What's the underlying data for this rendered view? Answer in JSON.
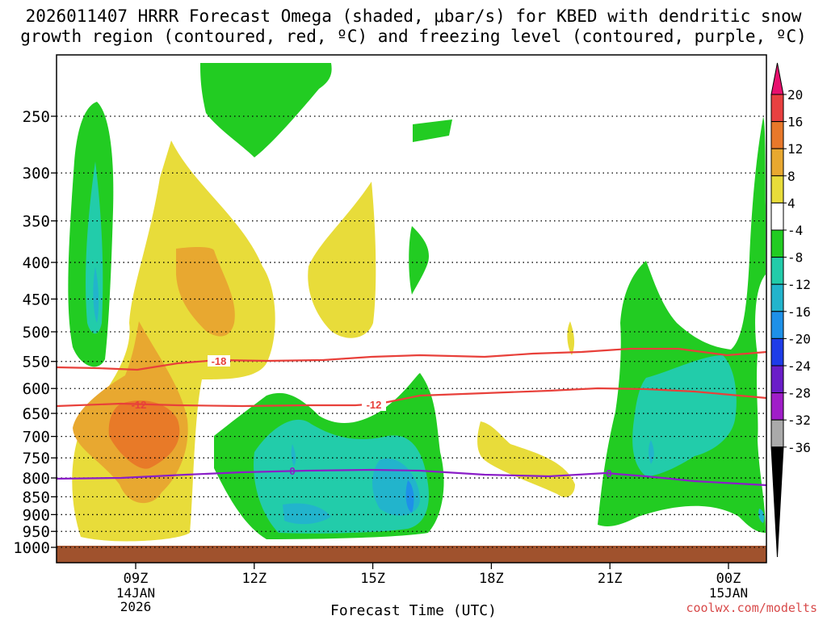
{
  "title_line1": "2026011407 HRRR Forecast Omega (shaded, μbar/s) for KBED with dendritic snow",
  "title_line2": "growth region (contoured, red, ºC) and freezing level (contoured, purple, ºC)",
  "credit": "coolwx.com/modelts",
  "colors": {
    "red_contour": "#e8403a",
    "purple_contour": "#8a1ec8",
    "ground": "#a0522d",
    "green": "#22cc22",
    "teal": "#22ccaa",
    "yellow": "#e8dc3a",
    "orange": "#e8a830",
    "dark_orange": "#e87a28"
  },
  "chart_data": {
    "type": "contour",
    "xlabel": "Forecast Time (UTC)",
    "ylabel": "",
    "x_ticks": [
      {
        "label": "09Z",
        "sub": [
          "14JAN",
          "2026"
        ]
      },
      {
        "label": "12Z",
        "sub": []
      },
      {
        "label": "15Z",
        "sub": []
      },
      {
        "label": "18Z",
        "sub": []
      },
      {
        "label": "21Z",
        "sub": []
      },
      {
        "label": "00Z",
        "sub": [
          "15JAN"
        ]
      }
    ],
    "y_ticks": [
      "250",
      "300",
      "350",
      "400",
      "450",
      "500",
      "550",
      "600",
      "650",
      "700",
      "750",
      "800",
      "850",
      "900",
      "950",
      "1000"
    ],
    "colorbar": {
      "labels": [
        "20",
        "16",
        "12",
        "8",
        "4",
        "-4",
        "-8",
        "-12",
        "-16",
        "-20",
        "-24",
        "-28",
        "-32",
        "-36"
      ],
      "colors": [
        "#e8106e",
        "#e84040",
        "#e8782a",
        "#e8a830",
        "#e8dc3a",
        "#ffffff",
        "#22cc22",
        "#22ccaa",
        "#22b4cc",
        "#1e90e8",
        "#1e3ce8",
        "#6a1ec8",
        "#a01ec8",
        "#aaaaaa",
        "#000000"
      ]
    },
    "contour_labels": [
      {
        "text": "-18",
        "color": "red"
      },
      {
        "text": "-12",
        "color": "red"
      },
      {
        "text": "-12",
        "color": "red"
      },
      {
        "text": "0",
        "color": "purple"
      },
      {
        "text": "0",
        "color": "purple"
      }
    ]
  }
}
